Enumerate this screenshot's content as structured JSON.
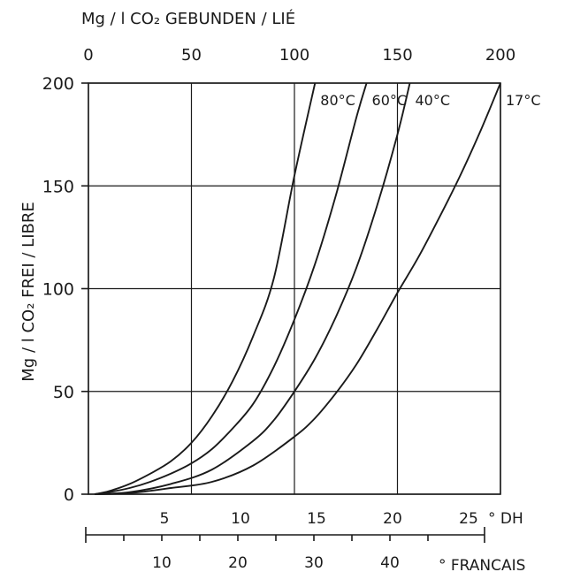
{
  "chart_data": {
    "type": "line",
    "top_axis": {
      "label": "Mg / l CO₂ GEBUNDEN / LIÉ",
      "range": [
        0,
        200
      ],
      "ticks": [
        0,
        50,
        100,
        150,
        200
      ],
      "tick_labels": [
        "0",
        "50",
        "100",
        "150",
        "200"
      ]
    },
    "left_axis": {
      "label": "Mg / l CO₂ FREI / LIBRE",
      "range": [
        0,
        200
      ],
      "ticks": [
        0,
        50,
        100,
        150,
        200
      ],
      "tick_labels": [
        "0",
        "50",
        "100",
        "150",
        "200"
      ]
    },
    "bottom_axis_dh": {
      "unit": "° DH",
      "ticks": [
        5,
        10,
        15,
        20,
        25
      ],
      "tick_labels": [
        "5",
        "10",
        "15",
        "20",
        "25"
      ]
    },
    "bottom_axis_francais": {
      "unit": "° FRANCAIS",
      "ticks": [
        10,
        20,
        30,
        40
      ],
      "tick_labels": [
        "10",
        "20",
        "30",
        "40"
      ]
    },
    "grid": true,
    "series": [
      {
        "name": "80°C",
        "x": [
          3,
          10,
          20,
          30,
          40,
          50,
          60,
          70,
          80,
          90,
          100,
          110
        ],
        "y": [
          0,
          1.5,
          5,
          10,
          16,
          25,
          38,
          55,
          77,
          105,
          155,
          200
        ]
      },
      {
        "name": "60°C",
        "x": [
          3,
          10,
          20,
          30,
          40,
          50,
          60,
          70,
          80,
          90,
          100,
          110,
          120,
          130,
          135
        ],
        "y": [
          0,
          1,
          3,
          6,
          10,
          15,
          22,
          32,
          44,
          62,
          85,
          112,
          145,
          183,
          200
        ]
      },
      {
        "name": "40°C",
        "x": [
          3,
          20,
          40,
          60,
          80,
          90,
          100,
          110,
          120,
          130,
          140,
          150,
          156
        ],
        "y": [
          0,
          1,
          5,
          12,
          26,
          36,
          50,
          66,
          86,
          110,
          140,
          175,
          200
        ]
      },
      {
        "name": "17°C",
        "x": [
          3,
          20,
          40,
          60,
          80,
          100,
          110,
          120,
          130,
          140,
          150,
          160,
          170,
          180,
          190,
          200
        ],
        "y": [
          0,
          0.5,
          3,
          6,
          14,
          28,
          37,
          49,
          63,
          80,
          98,
          115,
          134,
          154,
          176,
          200
        ]
      }
    ]
  }
}
